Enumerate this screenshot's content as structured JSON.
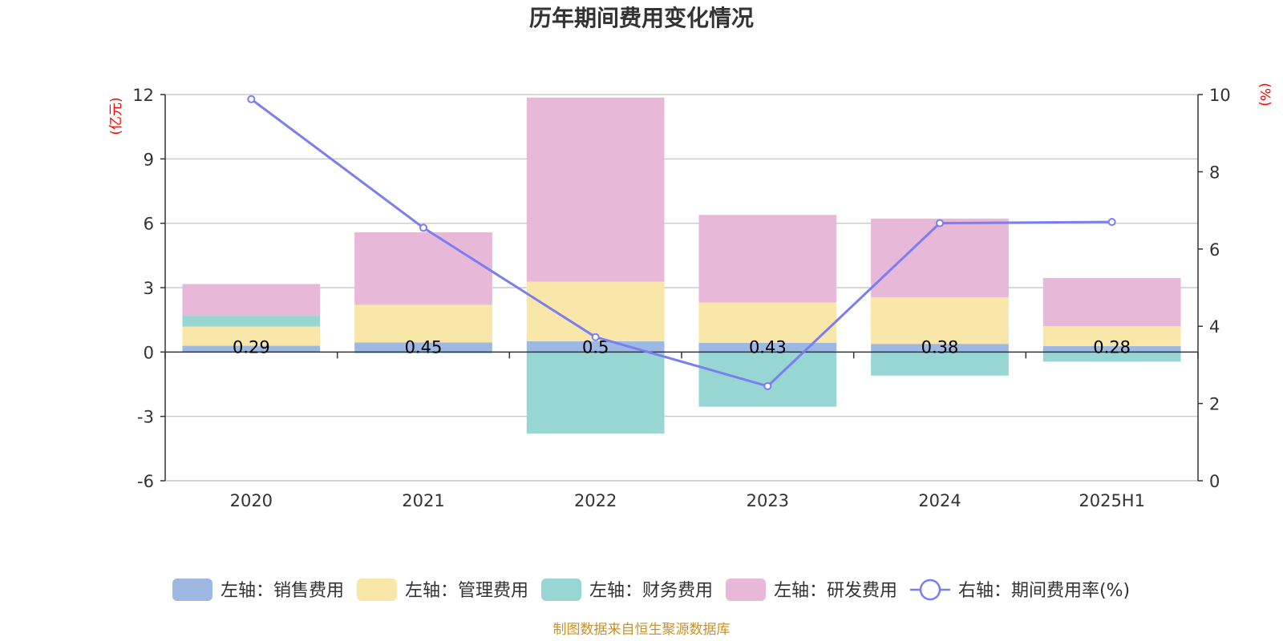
{
  "chart_data": {
    "type": "bar",
    "title": "历年期间费用变化情况",
    "categories": [
      "2020",
      "2021",
      "2022",
      "2023",
      "2024",
      "2025H1"
    ],
    "left_axis": {
      "unit": "(亿元)",
      "ylim": [
        -6,
        12
      ],
      "ticks": [
        -6,
        -3,
        0,
        3,
        6,
        9,
        12
      ]
    },
    "right_axis": {
      "unit": "(%)",
      "ylim": [
        0,
        10
      ],
      "ticks": [
        0,
        2,
        4,
        6,
        8,
        10
      ]
    },
    "series": [
      {
        "name": "左轴：销售费用",
        "color": "#9db8e3",
        "axis": "left",
        "values": [
          0.29,
          0.45,
          0.5,
          0.43,
          0.38,
          0.28
        ],
        "labels": [
          "0.29",
          "0.45",
          "0.5",
          "0.43",
          "0.38",
          "0.28"
        ]
      },
      {
        "name": "左轴：管理费用",
        "color": "#f8e7a8",
        "axis": "left",
        "values": [
          0.9,
          1.75,
          2.78,
          1.88,
          2.17,
          0.92
        ]
      },
      {
        "name": "左轴：财务费用",
        "color": "#98d6d4",
        "axis": "left",
        "values": [
          0.5,
          -0.05,
          -3.8,
          -2.55,
          -1.1,
          -0.45
        ]
      },
      {
        "name": "左轴：研发费用",
        "color": "#e8b8d8",
        "axis": "left",
        "values": [
          1.48,
          3.38,
          8.58,
          4.08,
          3.67,
          2.25
        ]
      },
      {
        "name": "右轴：期间费用率(%)",
        "color": "#7b7ef0",
        "axis": "right",
        "type": "line",
        "values": [
          9.88,
          6.55,
          3.72,
          2.45,
          6.67,
          6.7
        ]
      }
    ]
  },
  "source": "制图数据来自恒生聚源数据库"
}
